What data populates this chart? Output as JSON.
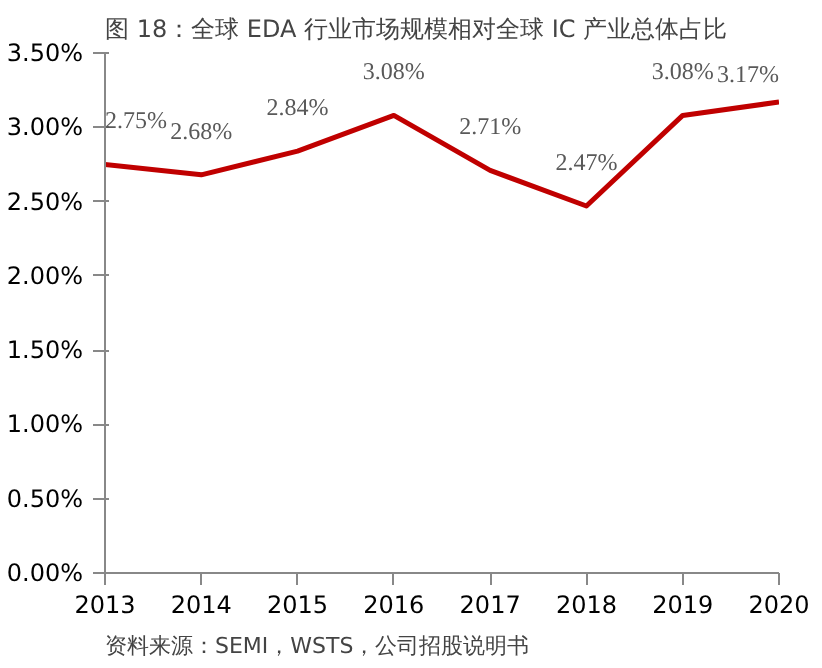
{
  "chart_data": {
    "type": "line",
    "title": "图 18：全球 EDA 行业市场规模相对全球 IC 产业总体占比",
    "x": [
      2013,
      2014,
      2015,
      2016,
      2017,
      2018,
      2019,
      2020
    ],
    "xlim": [
      2013,
      2020
    ],
    "xticks": [
      2013,
      2014,
      2015,
      2016,
      2017,
      2018,
      2019,
      2020
    ],
    "ylim": [
      0,
      3.5
    ],
    "yticks": [
      {
        "value": 0,
        "label": "0.00%"
      },
      {
        "value": 0.5,
        "label": "0.50%"
      },
      {
        "value": 1,
        "label": "1.00%"
      },
      {
        "value": 1.5,
        "label": "1.50%"
      },
      {
        "value": 2,
        "label": "2.00%"
      },
      {
        "value": 2.5,
        "label": "2.50%"
      },
      {
        "value": 3,
        "label": "3.00%"
      },
      {
        "value": 3.5,
        "label": "3.50%"
      }
    ],
    "series": [
      {
        "color": "#c00000",
        "values": [
          2.75,
          2.68,
          2.84,
          3.08,
          2.71,
          2.47,
          3.08,
          3.17
        ],
        "value_labels": [
          "2.75%",
          "2.68%",
          "2.84%",
          "3.08%",
          "2.71%",
          "2.47%",
          "3.08%",
          "3.17%"
        ]
      }
    ],
    "grid": false,
    "marker": "none",
    "line_style": "solid",
    "annotations": [
      "资料来源：SEMI，WSTS，公司招股说明书"
    ]
  }
}
